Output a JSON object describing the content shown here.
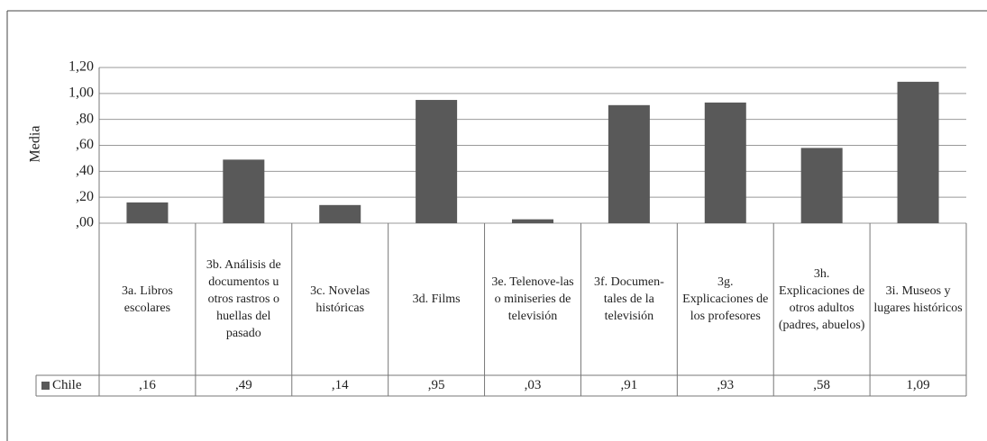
{
  "chart_data": {
    "type": "bar",
    "y_label": "Media",
    "categories": [
      "3a. Libros escolares",
      "3b. Análisis de documentos u otros rastros o huellas del pasado",
      "3c. Novelas históricas",
      "3d. Films",
      "3e. Telenove-las o miniseries de televisión",
      "3f. Documen-tales de la televisión",
      "3g. Explicaciones de los profesores",
      "3h. Explicaciones de otros adultos (padres, abuelos)",
      "3i. Museos y lugares históricos"
    ],
    "series": [
      {
        "name": "Chile",
        "color": "#595959",
        "values": [
          0.16,
          0.49,
          0.14,
          0.95,
          0.03,
          0.91,
          0.93,
          0.58,
          1.09
        ],
        "value_labels": [
          ",16",
          ",49",
          ",14",
          ",95",
          ",03",
          ",91",
          ",93",
          ",58",
          "1,09"
        ]
      }
    ],
    "ylim": [
      0,
      1.2
    ],
    "yticks": [
      {
        "value": 0,
        "label": ",00"
      },
      {
        "value": 0.2,
        "label": ",20"
      },
      {
        "value": 0.4,
        "label": ",40"
      },
      {
        "value": 0.6,
        "label": ",60"
      },
      {
        "value": 0.8,
        "label": ",80"
      },
      {
        "value": 1.0,
        "label": "1,00"
      },
      {
        "value": 1.2,
        "label": "1,20"
      }
    ],
    "grid": true
  }
}
